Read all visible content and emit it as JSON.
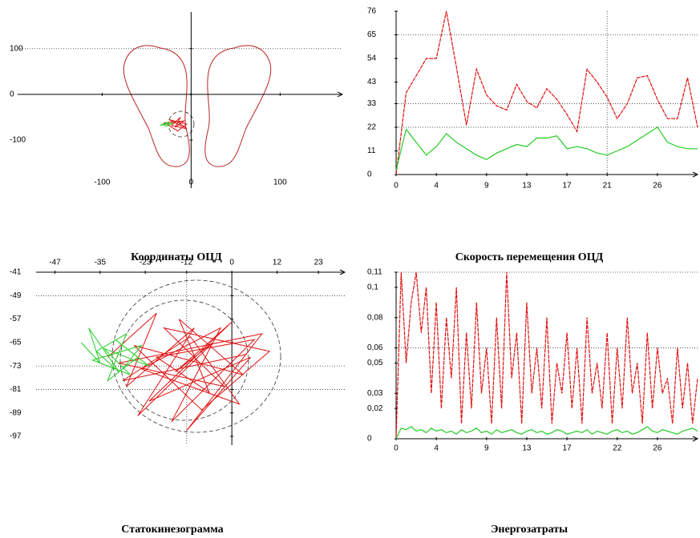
{
  "chart_data": [
    {
      "type": "trajectory",
      "title": "Координаты ОЦД",
      "xlim": [
        -195,
        170
      ],
      "ylim": [
        -205,
        180
      ],
      "xticks": [
        -100,
        0,
        100
      ],
      "yticks": [
        100,
        0,
        -100
      ],
      "ygrid": [
        100
      ],
      "series": [
        {
          "color": "#e01010",
          "x": [
            -20,
            -10,
            -25,
            -5,
            -15,
            -30,
            -8,
            -18,
            -12,
            -22,
            -5,
            -15
          ],
          "values": [
            -60,
            -70,
            -55,
            -65,
            -80,
            -62,
            -58,
            -72,
            -50,
            -68,
            -75,
            -60
          ]
        },
        {
          "color": "#22cc22",
          "x": [
            -30,
            -25,
            -35,
            -20,
            -28,
            -32
          ],
          "values": [
            -65,
            -60,
            -68,
            -62,
            -70,
            -63
          ]
        }
      ]
    },
    {
      "type": "line",
      "title": "Скорость перемещения ОЦД",
      "xlim": [
        0,
        30
      ],
      "ylim": [
        0,
        76
      ],
      "xticks": [
        0,
        4,
        9,
        13,
        17,
        21,
        26
      ],
      "yticks": [
        0,
        11,
        22,
        33,
        43,
        54,
        65,
        76
      ],
      "ygrid": [
        65,
        33,
        22
      ],
      "xgrid": [
        21
      ],
      "x": [
        0,
        1,
        2,
        3,
        4,
        5,
        6,
        7,
        8,
        9,
        10,
        11,
        12,
        13,
        14,
        15,
        16,
        17,
        18,
        19,
        20,
        21,
        22,
        23,
        24,
        25,
        26,
        27,
        28,
        29,
        30
      ],
      "series": [
        {
          "color": "#e01010",
          "values": [
            0,
            38,
            46,
            54,
            54,
            76,
            50,
            23,
            49,
            37,
            32,
            30,
            42,
            34,
            31,
            40,
            35,
            28,
            20,
            49,
            43,
            36,
            26,
            33,
            45,
            46,
            35,
            26,
            26,
            45,
            22
          ]
        },
        {
          "color": "#22cc22",
          "values": [
            2,
            21,
            15,
            9,
            13,
            19,
            15,
            12,
            9,
            7,
            10,
            12,
            14,
            13,
            17,
            17,
            18,
            12,
            13,
            12,
            10,
            9,
            11,
            13,
            16,
            19,
            22,
            15,
            13,
            12,
            12
          ]
        }
      ]
    },
    {
      "type": "trajectory",
      "title": "Статокинезограмма",
      "xlim": [
        -52,
        30
      ],
      "ylim": [
        -100,
        -41
      ],
      "xticks": [
        -47,
        -35,
        -23,
        -12,
        0,
        12,
        23
      ],
      "yticks": [
        -41,
        -49,
        -57,
        -65,
        -73,
        -81,
        -89,
        -97
      ],
      "ygrid": [
        -49,
        -73,
        -81
      ],
      "xgrid": [
        -12
      ],
      "series": [
        {
          "color": "#e01010",
          "x": [
            -33,
            -20,
            -28,
            -10,
            -25,
            -5,
            -15,
            0,
            -22,
            5,
            -12,
            8,
            -30,
            -2,
            -18,
            10,
            -8,
            -26,
            3,
            -14,
            -6,
            -20,
            6,
            -16,
            -3,
            -24,
            2,
            -11,
            -29,
            4
          ],
          "values": [
            -70,
            -55,
            -80,
            -60,
            -90,
            -65,
            -75,
            -58,
            -85,
            -70,
            -95,
            -62,
            -72,
            -80,
            -60,
            -68,
            -88,
            -66,
            -76,
            -57,
            -82,
            -70,
            -64,
            -92,
            -60,
            -74,
            -86,
            -63,
            -78,
            -69
          ]
        },
        {
          "color": "#22cc22",
          "x": [
            -40,
            -35,
            -38,
            -30,
            -36,
            -28,
            -33,
            -25,
            -31,
            -22,
            -34,
            -27,
            -37,
            -24,
            -29
          ],
          "values": [
            -65,
            -72,
            -60,
            -75,
            -68,
            -62,
            -78,
            -70,
            -64,
            -73,
            -67,
            -76,
            -71,
            -66,
            -74
          ]
        }
      ]
    },
    {
      "type": "line",
      "title": "Энергозатраты",
      "xlim": [
        0,
        30
      ],
      "ylim": [
        0,
        0.11
      ],
      "xticks": [
        0,
        4,
        9,
        13,
        17,
        22,
        26
      ],
      "yticks": [
        0,
        {
          "value": 0.02,
          "label": "0,02"
        },
        {
          "value": 0.03,
          "label": "0,03"
        },
        {
          "value": 0.05,
          "label": "0,05"
        },
        {
          "value": 0.06,
          "label": "0,06"
        },
        {
          "value": 0.08,
          "label": "0,08"
        },
        {
          "value": 0.1,
          "label": "0,1"
        },
        {
          "value": 0.11,
          "label": "0,11"
        }
      ],
      "ygrid": [
        0.06,
        0.11
      ],
      "x": [
        0,
        0.5,
        1,
        1.5,
        2,
        2.5,
        3,
        3.5,
        4,
        4.5,
        5,
        5.5,
        6,
        6.5,
        7,
        7.5,
        8,
        8.5,
        9,
        9.5,
        10,
        10.5,
        11,
        11.5,
        12,
        12.5,
        13,
        13.5,
        14,
        14.5,
        15,
        15.5,
        16,
        16.5,
        17,
        17.5,
        18,
        18.5,
        19,
        19.5,
        20,
        20.5,
        21,
        21.5,
        22,
        22.5,
        23,
        23.5,
        24,
        24.5,
        25,
        25.5,
        26,
        26.5,
        27,
        27.5,
        28,
        28.5,
        29,
        29.5,
        30
      ],
      "series": [
        {
          "color": "#e01010",
          "values": [
            0,
            0.11,
            0.05,
            0.09,
            0.11,
            0.07,
            0.1,
            0.03,
            0.09,
            0.02,
            0.08,
            0.04,
            0.1,
            0.01,
            0.07,
            0.02,
            0.09,
            0.03,
            0.06,
            0.01,
            0.08,
            0.02,
            0.11,
            0.04,
            0.07,
            0.01,
            0.09,
            0.03,
            0.06,
            0.02,
            0.08,
            0.01,
            0.05,
            0.03,
            0.07,
            0.02,
            0.06,
            0.01,
            0.08,
            0.03,
            0.05,
            0.02,
            0.07,
            0.01,
            0.06,
            0.02,
            0.08,
            0.03,
            0.05,
            0.01,
            0.07,
            0.02,
            0.06,
            0.03,
            0.04,
            0.01,
            0.06,
            0.02,
            0.05,
            0.01,
            0.04
          ]
        },
        {
          "color": "#22cc22",
          "values": [
            0,
            0.007,
            0.006,
            0.008,
            0.005,
            0.006,
            0.004,
            0.007,
            0.005,
            0.006,
            0.004,
            0.005,
            0.003,
            0.006,
            0.004,
            0.005,
            0.007,
            0.004,
            0.005,
            0.003,
            0.006,
            0.004,
            0.005,
            0.006,
            0.004,
            0.003,
            0.005,
            0.006,
            0.004,
            0.005,
            0.003,
            0.004,
            0.006,
            0.005,
            0.003,
            0.004,
            0.005,
            0.004,
            0.006,
            0.003,
            0.005,
            0.004,
            0.003,
            0.005,
            0.006,
            0.004,
            0.005,
            0.003,
            0.004,
            0.006,
            0.008,
            0.005,
            0.004,
            0.006,
            0.005,
            0.004,
            0.003,
            0.005,
            0.006,
            0.007,
            0.005
          ]
        }
      ]
    }
  ]
}
